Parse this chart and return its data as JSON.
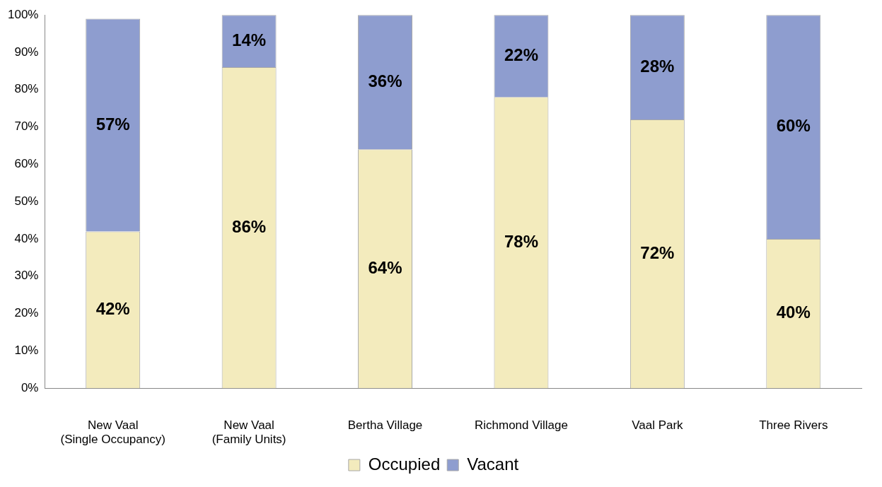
{
  "chart_data": {
    "type": "bar",
    "stacked": true,
    "categories": [
      "New Vaal (Single Occupancy)",
      "New Vaal (Family Units)",
      "Bertha Village",
      "Richmond Village",
      "Vaal Park",
      "Three Rivers"
    ],
    "series": [
      {
        "name": "Occupied",
        "color": "#f3ebbd",
        "values": [
          42,
          86,
          64,
          78,
          72,
          40
        ],
        "value_labels": [
          "42%",
          "86%",
          "64%",
          "78%",
          "72%",
          "40%"
        ]
      },
      {
        "name": "Vacant",
        "color": "#8e9dcf",
        "values": [
          57,
          14,
          36,
          22,
          28,
          60
        ],
        "value_labels": [
          "57%",
          "14%",
          "36%",
          "22%",
          "28%",
          "60%"
        ]
      }
    ],
    "ylim": [
      0,
      100
    ],
    "yticks": [
      {
        "value": 0,
        "label": "0%"
      },
      {
        "value": 10,
        "label": "10%"
      },
      {
        "value": 20,
        "label": "20%"
      },
      {
        "value": 30,
        "label": "30%"
      },
      {
        "value": 40,
        "label": "40%"
      },
      {
        "value": 50,
        "label": "50%"
      },
      {
        "value": 60,
        "label": "60%"
      },
      {
        "value": 70,
        "label": "70%"
      },
      {
        "value": 80,
        "label": "80%"
      },
      {
        "value": 90,
        "label": "90%"
      },
      {
        "value": 100,
        "label": "100%"
      }
    ],
    "grid": false,
    "legend": "bottom"
  }
}
